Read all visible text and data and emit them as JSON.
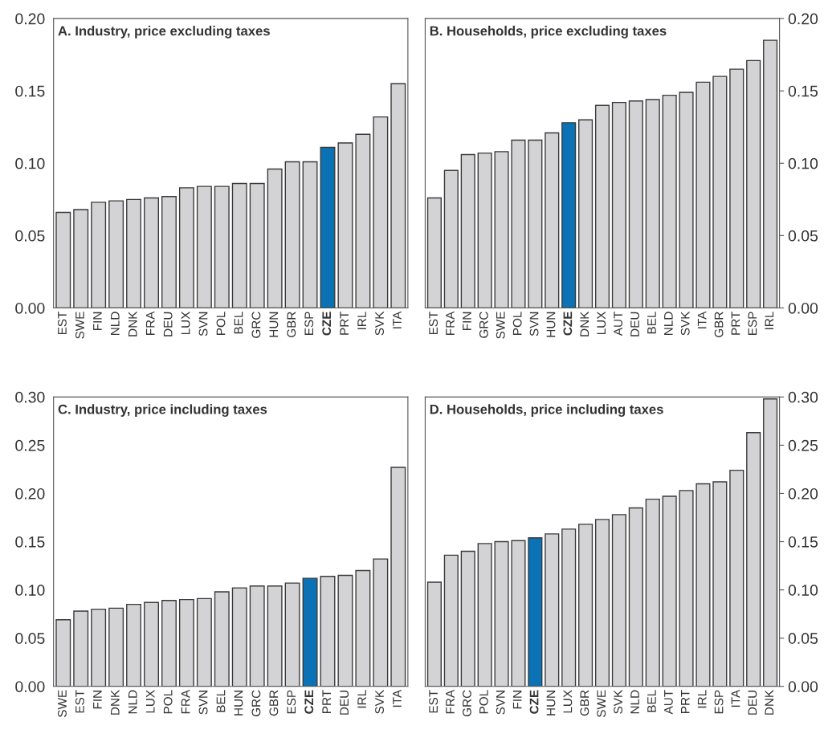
{
  "chart_data": [
    {
      "type": "bar",
      "title": "A. Industry, price excluding taxes",
      "categories": [
        "EST",
        "SWE",
        "FIN",
        "NLD",
        "DNK",
        "FRA",
        "DEU",
        "LUX",
        "SVN",
        "POL",
        "BEL",
        "GRC",
        "HUN",
        "GBR",
        "ESP",
        "CZE",
        "PRT",
        "IRL",
        "SVK",
        "ITA"
      ],
      "values": [
        0.066,
        0.068,
        0.073,
        0.074,
        0.075,
        0.076,
        0.077,
        0.083,
        0.084,
        0.084,
        0.086,
        0.086,
        0.096,
        0.101,
        0.101,
        0.111,
        0.114,
        0.12,
        0.132,
        0.155
      ],
      "colors": [
        "#d3d3d5",
        "#d3d3d5",
        "#d3d3d5",
        "#d3d3d5",
        "#d3d3d5",
        "#d3d3d5",
        "#d3d3d5",
        "#d3d3d5",
        "#d3d3d5",
        "#d3d3d5",
        "#d3d3d5",
        "#d3d3d5",
        "#d3d3d5",
        "#d3d3d5",
        "#d3d3d5",
        "#0b72b5",
        "#d3d3d5",
        "#d3d3d5",
        "#d3d3d5",
        "#d3d3d5"
      ],
      "ylim": [
        0,
        0.2
      ],
      "yticks": [
        {
          "value": 0,
          "label": "0.00"
        },
        {
          "value": 0.05,
          "label": "0.05"
        },
        {
          "value": 0.1,
          "label": "0.10"
        },
        {
          "value": 0.15,
          "label": "0.15"
        },
        {
          "value": 0.2,
          "label": "0.20"
        }
      ],
      "grid": false
    },
    {
      "type": "bar",
      "title": "B. Households, price excluding taxes",
      "categories": [
        "EST",
        "FRA",
        "FIN",
        "GRC",
        "SWE",
        "POL",
        "SVN",
        "HUN",
        "CZE",
        "DNK",
        "LUX",
        "AUT",
        "DEU",
        "BEL",
        "NLD",
        "SVK",
        "ITA",
        "GBR",
        "PRT",
        "ESP",
        "IRL"
      ],
      "values": [
        0.076,
        0.095,
        0.106,
        0.107,
        0.108,
        0.116,
        0.116,
        0.121,
        0.128,
        0.13,
        0.14,
        0.142,
        0.143,
        0.144,
        0.147,
        0.149,
        0.156,
        0.16,
        0.165,
        0.171,
        0.185
      ],
      "colors": [
        "#d3d3d5",
        "#d3d3d5",
        "#d3d3d5",
        "#d3d3d5",
        "#d3d3d5",
        "#d3d3d5",
        "#d3d3d5",
        "#d3d3d5",
        "#0b72b5",
        "#d3d3d5",
        "#d3d3d5",
        "#d3d3d5",
        "#d3d3d5",
        "#d3d3d5",
        "#d3d3d5",
        "#d3d3d5",
        "#d3d3d5",
        "#d3d3d5",
        "#d3d3d5",
        "#d3d3d5",
        "#d3d3d5"
      ],
      "ylim": [
        0,
        0.2
      ],
      "yticks": [
        {
          "value": 0,
          "label": "0.00"
        },
        {
          "value": 0.05,
          "label": "0.05"
        },
        {
          "value": 0.1,
          "label": "0.10"
        },
        {
          "value": 0.15,
          "label": "0.15"
        },
        {
          "value": 0.2,
          "label": "0.20"
        }
      ],
      "grid": false
    },
    {
      "type": "bar",
      "title": "C. Industry, price including taxes",
      "categories": [
        "SWE",
        "EST",
        "FIN",
        "DNK",
        "NLD",
        "LUX",
        "POL",
        "FRA",
        "SVN",
        "BEL",
        "HUN",
        "GRC",
        "GBR",
        "ESP",
        "CZE",
        "PRT",
        "DEU",
        "IRL",
        "SVK",
        "ITA"
      ],
      "values": [
        0.069,
        0.078,
        0.08,
        0.081,
        0.085,
        0.087,
        0.089,
        0.09,
        0.091,
        0.098,
        0.102,
        0.104,
        0.104,
        0.107,
        0.112,
        0.114,
        0.115,
        0.12,
        0.132,
        0.227
      ],
      "colors": [
        "#d3d3d5",
        "#d3d3d5",
        "#d3d3d5",
        "#d3d3d5",
        "#d3d3d5",
        "#d3d3d5",
        "#d3d3d5",
        "#d3d3d5",
        "#d3d3d5",
        "#d3d3d5",
        "#d3d3d5",
        "#d3d3d5",
        "#d3d3d5",
        "#d3d3d5",
        "#0b72b5",
        "#d3d3d5",
        "#d3d3d5",
        "#d3d3d5",
        "#d3d3d5",
        "#d3d3d5"
      ],
      "ylim": [
        0,
        0.3
      ],
      "yticks": [
        {
          "value": 0,
          "label": "0.00"
        },
        {
          "value": 0.05,
          "label": "0.05"
        },
        {
          "value": 0.1,
          "label": "0.10"
        },
        {
          "value": 0.15,
          "label": "0.15"
        },
        {
          "value": 0.2,
          "label": "0.20"
        },
        {
          "value": 0.25,
          "label": "0.25"
        },
        {
          "value": 0.3,
          "label": "0.30"
        }
      ],
      "grid": false
    },
    {
      "type": "bar",
      "title": "D. Households, price including taxes",
      "categories": [
        "EST",
        "FRA",
        "GRC",
        "POL",
        "SVN",
        "FIN",
        "CZE",
        "HUN",
        "LUX",
        "GBR",
        "SWE",
        "SVK",
        "NLD",
        "BEL",
        "AUT",
        "PRT",
        "IRL",
        "ESP",
        "ITA",
        "DEU",
        "DNK"
      ],
      "values": [
        0.108,
        0.136,
        0.14,
        0.148,
        0.15,
        0.151,
        0.154,
        0.158,
        0.163,
        0.168,
        0.173,
        0.178,
        0.185,
        0.194,
        0.197,
        0.203,
        0.21,
        0.212,
        0.224,
        0.263,
        0.298
      ],
      "colors": [
        "#d3d3d5",
        "#d3d3d5",
        "#d3d3d5",
        "#d3d3d5",
        "#d3d3d5",
        "#d3d3d5",
        "#0b72b5",
        "#d3d3d5",
        "#d3d3d5",
        "#d3d3d5",
        "#d3d3d5",
        "#d3d3d5",
        "#d3d3d5",
        "#d3d3d5",
        "#d3d3d5",
        "#d3d3d5",
        "#d3d3d5",
        "#d3d3d5",
        "#d3d3d5",
        "#d3d3d5",
        "#d3d3d5"
      ],
      "ylim": [
        0,
        0.3
      ],
      "yticks": [
        {
          "value": 0,
          "label": "0.00"
        },
        {
          "value": 0.05,
          "label": "0.05"
        },
        {
          "value": 0.1,
          "label": "0.10"
        },
        {
          "value": 0.15,
          "label": "0.15"
        },
        {
          "value": 0.2,
          "label": "0.20"
        },
        {
          "value": 0.25,
          "label": "0.25"
        },
        {
          "value": 0.3,
          "label": "0.30"
        }
      ],
      "grid": false
    }
  ]
}
